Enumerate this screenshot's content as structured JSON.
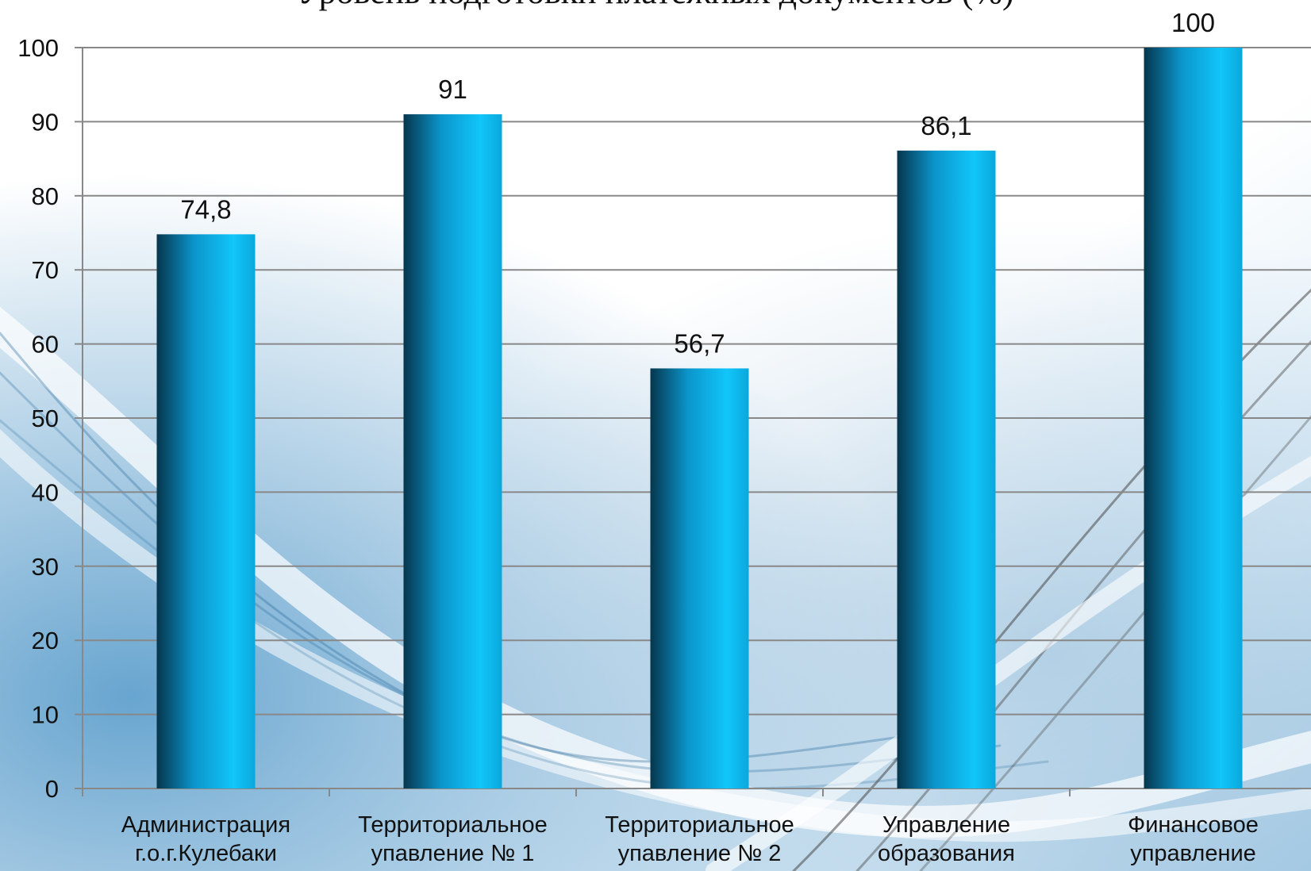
{
  "chart_data": {
    "type": "bar",
    "title": "Уровень подготовки платежных документов (%)",
    "categories": [
      [
        "Администрация",
        "г.о.г.Кулебаки"
      ],
      [
        "Территориальное",
        "упавление № 1"
      ],
      [
        "Территориальное",
        "упавление № 2"
      ],
      [
        "Управление",
        "образования"
      ],
      [
        "Финансовое",
        "управление"
      ]
    ],
    "values": [
      74.8,
      91,
      56.7,
      86.1,
      100
    ],
    "value_labels": [
      "74,8",
      "91",
      "56,7",
      "86,1",
      "100"
    ],
    "ylim": [
      0,
      100
    ],
    "yticks": [
      0,
      10,
      20,
      30,
      40,
      50,
      60,
      70,
      80,
      90,
      100
    ],
    "grid": true,
    "legend": "none",
    "colors": {
      "bar_dark": "#06364c",
      "bar_mid": "#0b95cb",
      "bar_light": "#11c6fa",
      "grid": "#888888"
    }
  }
}
